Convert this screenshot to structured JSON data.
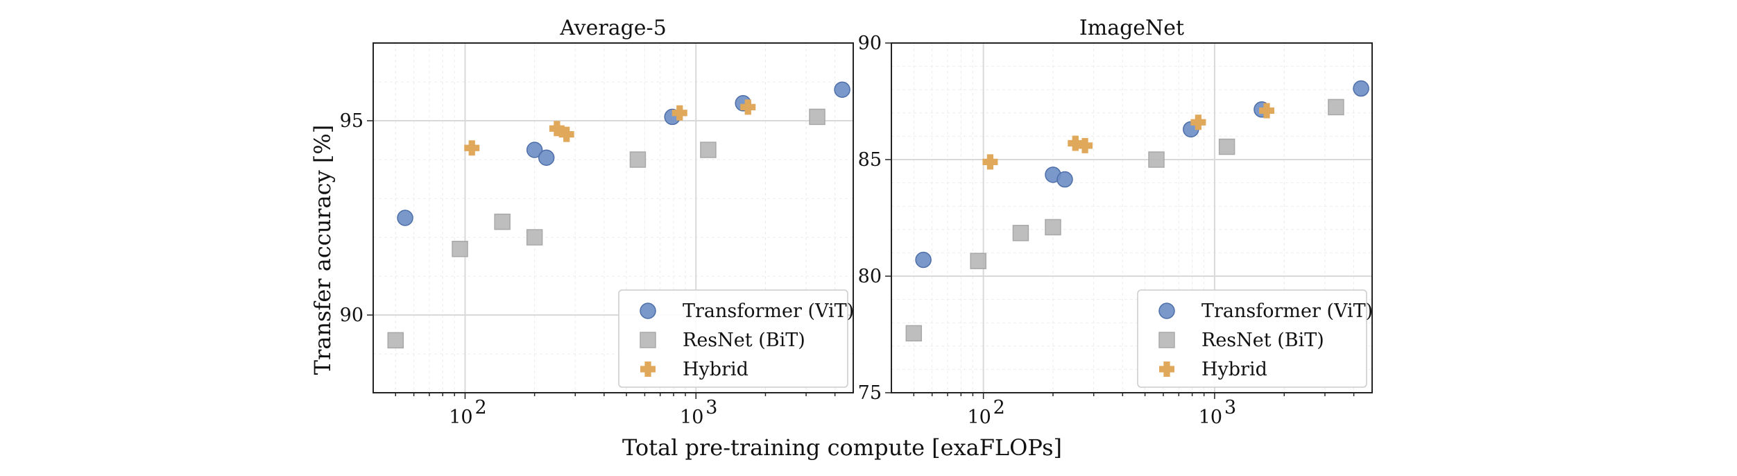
{
  "figure": {
    "xlabel": "Total pre-training compute [exaFLOPs]",
    "ylabel": "Transfer accuracy [%]"
  },
  "chart_data": [
    {
      "type": "scatter",
      "title": "Average-5",
      "xscale": "log",
      "xlim": [
        40,
        4800
      ],
      "ylim": [
        88,
        97
      ],
      "xticks": [
        100,
        1000
      ],
      "xtick_labels": [
        "10",
        "10"
      ],
      "xtick_exponents": [
        "2",
        "3"
      ],
      "yticks": [
        90,
        95
      ],
      "ytick_labels": [
        "90",
        "95"
      ],
      "grid": true,
      "legend_position": "lower-right",
      "series": [
        {
          "name": "Transformer (ViT)",
          "marker": "circle",
          "color": "#6f8fc6",
          "x": [
            55,
            200,
            225,
            790,
            1600,
            4300
          ],
          "y": [
            92.5,
            94.25,
            94.05,
            95.1,
            95.45,
            95.8
          ]
        },
        {
          "name": "ResNet (BiT)",
          "marker": "square",
          "color": "#b8b8b8",
          "x": [
            50,
            95,
            145,
            200,
            560,
            1130,
            3350
          ],
          "y": [
            89.35,
            91.7,
            92.4,
            92.0,
            94.0,
            94.25,
            95.1
          ]
        },
        {
          "name": "Hybrid",
          "marker": "plus",
          "color": "#e0a85a",
          "x": [
            107,
            250,
            275,
            850,
            1680
          ],
          "y": [
            94.3,
            94.8,
            94.65,
            95.2,
            95.35
          ]
        }
      ]
    },
    {
      "type": "scatter",
      "title": "ImageNet",
      "xscale": "log",
      "xlim": [
        40,
        4800
      ],
      "ylim": [
        75,
        90
      ],
      "xticks": [
        100,
        1000
      ],
      "xtick_labels": [
        "10",
        "10"
      ],
      "xtick_exponents": [
        "2",
        "3"
      ],
      "yticks": [
        75,
        80,
        85,
        90
      ],
      "ytick_labels": [
        "75",
        "80",
        "85",
        "90"
      ],
      "grid": true,
      "legend_position": "lower-right",
      "series": [
        {
          "name": "Transformer (ViT)",
          "marker": "circle",
          "color": "#6f8fc6",
          "x": [
            55,
            200,
            225,
            790,
            1600,
            4300
          ],
          "y": [
            80.7,
            84.35,
            84.15,
            86.3,
            87.15,
            88.05
          ]
        },
        {
          "name": "ResNet (BiT)",
          "marker": "square",
          "color": "#b8b8b8",
          "x": [
            50,
            95,
            145,
            200,
            560,
            1130,
            3350
          ],
          "y": [
            77.55,
            80.65,
            81.85,
            82.1,
            85.0,
            85.55,
            87.25
          ]
        },
        {
          "name": "Hybrid",
          "marker": "plus",
          "color": "#e0a85a",
          "x": [
            107,
            250,
            275,
            850,
            1680
          ],
          "y": [
            84.9,
            85.7,
            85.6,
            86.6,
            87.1
          ]
        }
      ]
    }
  ]
}
